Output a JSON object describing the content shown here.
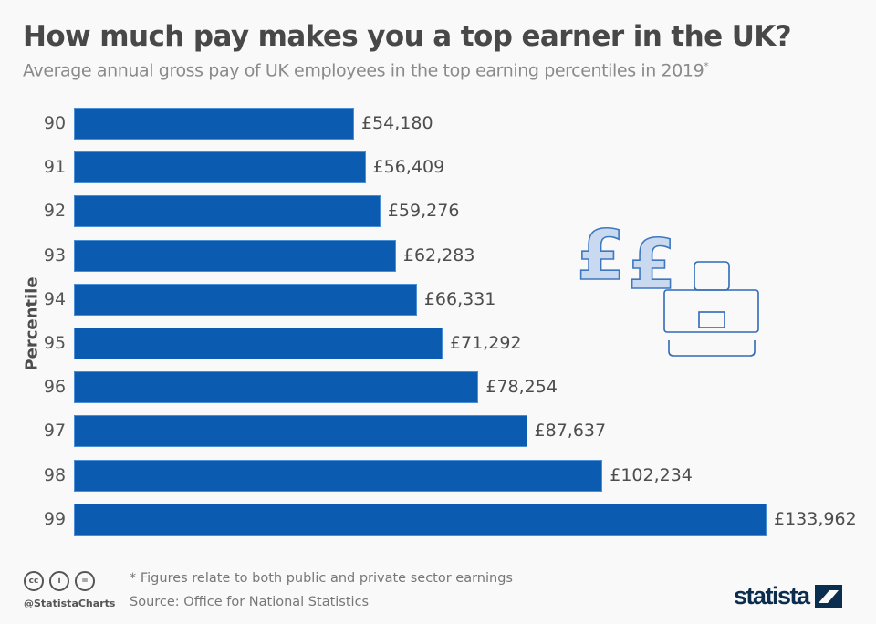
{
  "header": {
    "title": "How much pay makes you a top earner in the UK?",
    "subtitle": "Average annual gross pay of UK employees in the top earning percentiles in 2019",
    "subtitle_mark": "*"
  },
  "footer": {
    "note": "* Figures relate to both public and private sector earnings",
    "source": "Source: Office for National Statistics",
    "handle": "@StatistaCharts",
    "logo": "statista",
    "license_icons": [
      "cc-icon",
      "attribution-icon",
      "no-derivatives-icon"
    ]
  },
  "colors": {
    "bar": "#0b5cb0",
    "background": "#f9f9f9",
    "illustration": "#4a7fc1"
  },
  "chart_data": {
    "type": "bar",
    "orientation": "horizontal",
    "title": "How much pay makes you a top earner in the UK?",
    "subtitle": "Average annual gross pay of UK employees in the top earning percentiles in 2019*",
    "xlabel": "",
    "ylabel": "Percentile",
    "categories": [
      "90",
      "91",
      "92",
      "93",
      "94",
      "95",
      "96",
      "97",
      "98",
      "99"
    ],
    "values": [
      54180,
      56409,
      59276,
      62283,
      66331,
      71292,
      78254,
      87637,
      102234,
      133962
    ],
    "labels": [
      "£54,180",
      "£56,409",
      "£59,276",
      "£62,283",
      "£66,331",
      "£71,292",
      "£78,254",
      "£87,637",
      "£102,234",
      "£133,962"
    ],
    "unit": "GBP",
    "grid": false,
    "legend": "none",
    "xlim": [
      0,
      133962
    ]
  }
}
